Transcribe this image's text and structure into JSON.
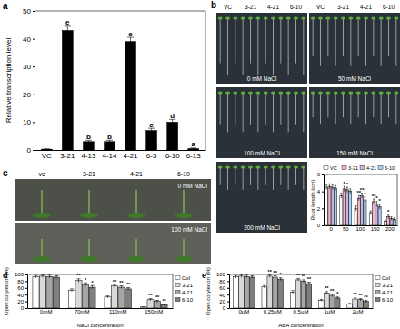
{
  "chart_data": [
    {
      "type": "bar",
      "title": "a",
      "categories": [
        "VC",
        "3-21",
        "4-13",
        "4-14",
        "4-21",
        "6-5",
        "6-10",
        "6-13"
      ],
      "values": [
        0.3,
        43,
        3,
        3,
        39,
        7,
        10,
        0.5
      ],
      "errors": [
        0.1,
        1.5,
        0.5,
        0.5,
        1.5,
        0.8,
        1,
        0.2
      ],
      "annotations": [
        null,
        "e",
        "b",
        "b",
        "e",
        "c",
        "d",
        "a"
      ],
      "color": "#000000",
      "ylabel": "Relative transcription level",
      "ylim": [
        0,
        50
      ],
      "yticks": [
        0,
        10,
        20,
        30,
        40,
        50
      ]
    },
    {
      "type": "bar",
      "categories": [
        "0",
        "50",
        "100",
        "150",
        "200"
      ],
      "series": [
        {
          "name": "VC",
          "color": "#ffffff",
          "values": [
            4.5,
            3.5,
            2,
            1.5,
            0.5
          ],
          "errors": [
            0.3,
            0.3,
            0.3,
            0.2,
            0.1
          ],
          "annotations": [
            null,
            null,
            null,
            null,
            null
          ]
        },
        {
          "name": "3-21",
          "color": "#f4b6c2",
          "values": [
            4.6,
            4.3,
            3.2,
            2.8,
            1
          ],
          "errors": [
            0.3,
            0.3,
            0.3,
            0.3,
            0.2
          ],
          "annotations": [
            null,
            "*",
            "**",
            "**",
            "*"
          ]
        },
        {
          "name": "4-21",
          "color": "#c9b3e6",
          "values": [
            4.5,
            4.2,
            3.5,
            2.5,
            0.8
          ],
          "errors": [
            0.3,
            0.3,
            0.3,
            0.3,
            0.2
          ],
          "annotations": [
            null,
            "*",
            "**",
            "*",
            null
          ]
        },
        {
          "name": "6-10",
          "color": "#a9d3ef",
          "values": [
            4.4,
            4,
            3,
            2.2,
            0.7
          ],
          "errors": [
            0.3,
            0.3,
            0.3,
            0.3,
            0.2
          ],
          "annotations": [
            null,
            null,
            "*",
            "*",
            null
          ]
        }
      ],
      "ylabel": "Root length (cm)",
      "ylim": [
        0,
        6
      ],
      "yticks": [
        0,
        2,
        4,
        6
      ],
      "legend": "top"
    },
    {
      "type": "bar",
      "title": "d",
      "categories": [
        "0mM",
        "70mM",
        "110mM",
        "150mM"
      ],
      "series": [
        {
          "name": "Col",
          "color": "#ffffff",
          "values": [
            93,
            53,
            33,
            3
          ],
          "errors": [
            4,
            4,
            3,
            1
          ],
          "annotations": [
            null,
            null,
            null,
            null
          ]
        },
        {
          "name": "3-21",
          "color": "#d9d9d9",
          "values": [
            95,
            82,
            66,
            25
          ],
          "errors": [
            4,
            5,
            4,
            3
          ],
          "annotations": [
            null,
            "**",
            "**",
            "**"
          ]
        },
        {
          "name": "4-21",
          "color": "#a6a6a6",
          "values": [
            94,
            70,
            62,
            20
          ],
          "errors": [
            4,
            5,
            4,
            3
          ],
          "annotations": [
            null,
            "*",
            "**",
            "**"
          ]
        },
        {
          "name": "6-10",
          "color": "#7f7f7f",
          "values": [
            92,
            62,
            57,
            10
          ],
          "errors": [
            4,
            5,
            4,
            2
          ],
          "annotations": [
            null,
            "*",
            "**",
            "**"
          ]
        }
      ],
      "xlabel": "NaCl concentration",
      "ylabel": "Open cotyledon (%)",
      "ylim": [
        0,
        100
      ],
      "yticks": [
        0,
        20,
        40,
        60,
        80,
        100
      ],
      "legend": "right"
    },
    {
      "type": "bar",
      "title": "e",
      "categories": [
        "0μM",
        "0.25μM",
        "0.5μM",
        "1μM",
        "2μM"
      ],
      "series": [
        {
          "name": "Col",
          "color": "#ffffff",
          "values": [
            93,
            63,
            47,
            23,
            12
          ],
          "errors": [
            4,
            4,
            5,
            3,
            2
          ],
          "annotations": [
            null,
            null,
            null,
            null,
            null
          ]
        },
        {
          "name": "3-21",
          "color": "#d9d9d9",
          "values": [
            95,
            95,
            84,
            45,
            27
          ],
          "errors": [
            4,
            4,
            4,
            4,
            3
          ],
          "annotations": [
            null,
            "**",
            "**",
            "**",
            "**"
          ]
        },
        {
          "name": "4-21",
          "color": "#a6a6a6",
          "values": [
            94,
            92,
            80,
            38,
            25
          ],
          "errors": [
            4,
            4,
            4,
            4,
            3
          ],
          "annotations": [
            null,
            "**",
            "**",
            "**",
            "**"
          ]
        },
        {
          "name": "6-10",
          "color": "#7f7f7f",
          "values": [
            92,
            86,
            73,
            30,
            20
          ],
          "errors": [
            4,
            4,
            4,
            3,
            3
          ],
          "annotations": [
            null,
            "*",
            "**",
            "*",
            "**"
          ]
        }
      ],
      "xlabel": "ABA concentration",
      "ylabel": "Open cotyledon (%)",
      "ylim": [
        0,
        100
      ],
      "yticks": [
        0,
        20,
        40,
        60,
        80,
        100
      ],
      "legend": "right"
    }
  ],
  "photos": {
    "b": {
      "label": "b",
      "lines": [
        "VC",
        "3-21",
        "4-21",
        "6-10"
      ],
      "conditions": [
        "0 mM NaCl",
        "50 mM NaCl",
        "100 mM NaCl",
        "150 mM NaCl",
        "200 mM NaCl"
      ]
    },
    "c": {
      "label": "c",
      "lines": [
        "vc",
        "3-21",
        "4-21",
        "6-10"
      ],
      "conditions": [
        "0 mM NaCl",
        "100 mM NaCl"
      ]
    }
  }
}
